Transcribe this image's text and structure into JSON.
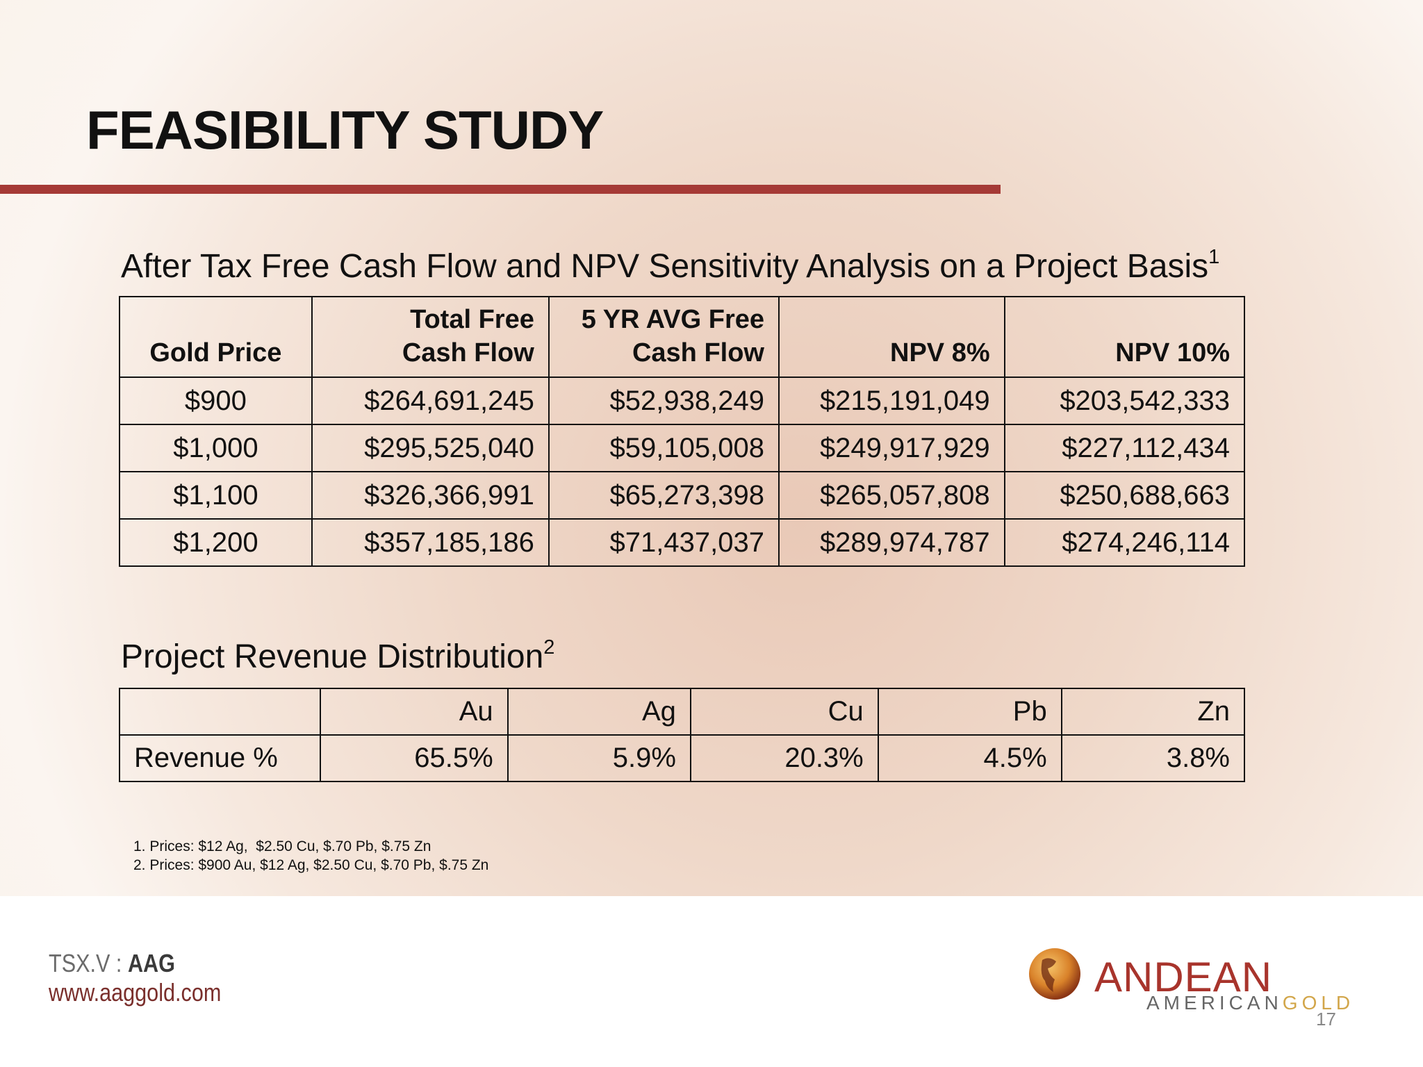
{
  "header": {
    "title": "FEASIBILITY STUDY"
  },
  "cash_flow": {
    "caption": "After Tax Free Cash Flow and NPV Sensitivity Analysis on a Project Basis",
    "note_ref": "1",
    "columns": [
      [
        "Gold Price"
      ],
      [
        "Total Free",
        "Cash Flow"
      ],
      [
        "5 YR AVG Free",
        "Cash Flow"
      ],
      [
        "NPV 8%"
      ],
      [
        "NPV 10%"
      ]
    ],
    "rows": [
      [
        "$900",
        "$264,691,245",
        "$52,938,249",
        "$215,191,049",
        "$203,542,333"
      ],
      [
        "$1,000",
        "$295,525,040",
        "$59,105,008",
        "$249,917,929",
        "$227,112,434"
      ],
      [
        "$1,100",
        "$326,366,991",
        "$65,273,398",
        "$265,057,808",
        "$250,688,663"
      ],
      [
        "$1,200",
        "$357,185,186",
        "$71,437,037",
        "$289,974,787",
        "$274,246,114"
      ]
    ]
  },
  "revenue": {
    "caption": "Project Revenue Distribution",
    "note_ref": "2",
    "columns": [
      "Au",
      "Ag",
      "Cu",
      "Pb",
      "Zn"
    ],
    "row_label": "Revenue %",
    "values": [
      "65.5%",
      "5.9%",
      "20.3%",
      "4.5%",
      "3.8%"
    ]
  },
  "footnotes": [
    "1. Prices: $12 Ag,  $2.50 Cu, $.70 Pb, $.75 Zn",
    "2. Prices: $900 Au, $12 Ag, $2.50 Cu, $.70 Pb, $.75 Zn"
  ],
  "footer": {
    "exchange": "TSX.V : ",
    "ticker": "AAG",
    "website": "www.aaggold.com",
    "logo": {
      "line1": "ANDEAN",
      "line2a": "AMERICAN",
      "line2b": "GOLD"
    },
    "page": "17"
  }
}
